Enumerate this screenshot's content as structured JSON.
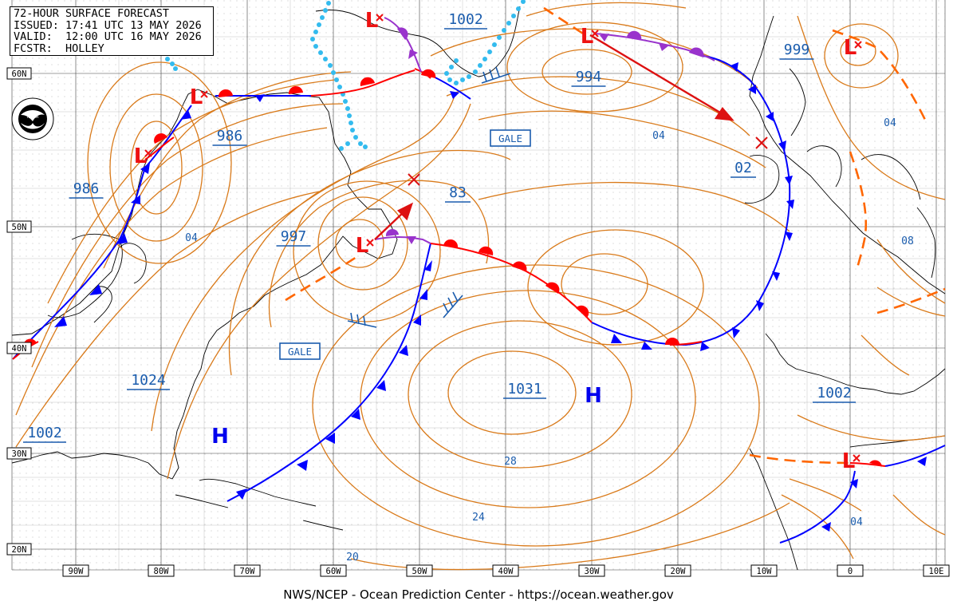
{
  "header": {
    "title": "72-HOUR SURFACE FORECAST",
    "issued": "ISSUED: 17:41 UTC 13 MAY 2026",
    "valid": "VALID:  12:00 UTC 16 MAY 2026",
    "forecaster": "FCSTR:  HOLLEY"
  },
  "footer": "NWS/NCEP - Ocean Prediction Center - https://ocean.weather.gov",
  "logo_icon": "noaa-logo-icon",
  "latitude_labels": [
    "60N",
    "50N",
    "40N",
    "30N",
    "20N"
  ],
  "longitude_labels": [
    "90W",
    "80W",
    "70W",
    "60W",
    "50W",
    "40W",
    "30W",
    "20W",
    "10W",
    "0",
    "10E"
  ],
  "pressure_labels": [
    "1002",
    "994",
    "999",
    "986",
    "986",
    "997",
    "83",
    "04",
    "02",
    "04",
    "04",
    "08",
    "1024",
    "1031",
    "1002",
    "1002",
    "28",
    "24",
    "20",
    "04"
  ],
  "warnings": [
    "GALE",
    "GALE"
  ],
  "pressure_centers": [
    "L",
    "L",
    "L",
    "L",
    "L",
    "L",
    "L",
    "H",
    "H"
  ],
  "colors": {
    "isobar": "#d97a1a",
    "cold_front": "#0000ff",
    "warm_front": "#ff0000",
    "occluded_front": "#9933cc",
    "trough": "#ff6600",
    "ice": "#33bbee",
    "label": "#1a5cad",
    "grid": "#000000",
    "coast": "#000000"
  }
}
